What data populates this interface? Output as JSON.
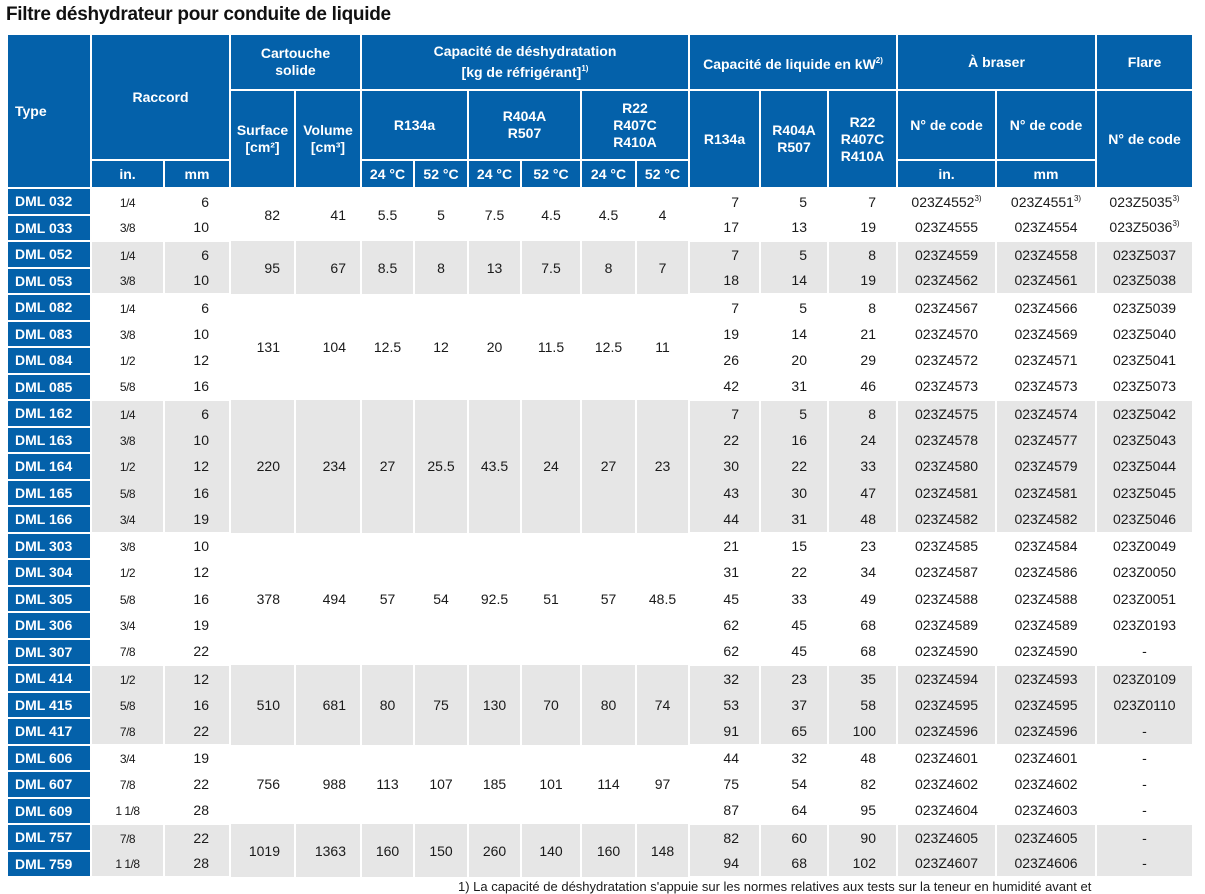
{
  "title": "Filtre déshydrateur pour conduite de liquide",
  "headers": {
    "type": "Type",
    "raccord": "Raccord",
    "raccord_in": "in.",
    "raccord_mm": "mm",
    "cartouche": "Cartouche solide",
    "surface": "Surface",
    "surface_unit": "[cm²]",
    "volume": "Volume",
    "volume_unit": "[cm³]",
    "capacite_desh": "Capacité de déshydratation",
    "capacite_desh_unit": "[kg de réfrigérant]",
    "capacite_desh_fn": "1)",
    "r134a": "R134a",
    "r404a": "R404A R507",
    "r22": "R22 R407C R410A",
    "t24": "24 °C",
    "t52": "52 °C",
    "capacite_liq": "Capacité de liquide en kW",
    "capacite_liq_fn": "2)",
    "braser": "À braser",
    "flare": "Flare",
    "code": "N° de code",
    "code_in": "in.",
    "code_mm": "mm"
  },
  "groups": [
    {
      "surface": "82",
      "volume": "41",
      "desh": [
        "5.5",
        "5",
        "7.5",
        "4.5",
        "4.5",
        "4"
      ],
      "rows": [
        {
          "type": "DML 032",
          "in": "1/4",
          "mm": "6",
          "liq": [
            "7",
            "5",
            "7"
          ],
          "code_in": "023Z4552",
          "code_in_fn": "3)",
          "code_mm": "023Z4551",
          "code_mm_fn": "3)",
          "flare": "023Z5035",
          "flare_fn": "3)"
        },
        {
          "type": "DML 033",
          "in": "3/8",
          "mm": "10",
          "liq": [
            "17",
            "13",
            "19"
          ],
          "code_in": "023Z4555",
          "code_mm": "023Z4554",
          "flare": "023Z5036",
          "flare_fn": "3)"
        }
      ]
    },
    {
      "surface": "95",
      "volume": "67",
      "desh": [
        "8.5",
        "8",
        "13",
        "7.5",
        "8",
        "7"
      ],
      "rows": [
        {
          "type": "DML 052",
          "in": "1/4",
          "mm": "6",
          "liq": [
            "7",
            "5",
            "8"
          ],
          "code_in": "023Z4559",
          "code_mm": "023Z4558",
          "flare": "023Z5037"
        },
        {
          "type": "DML 053",
          "in": "3/8",
          "mm": "10",
          "liq": [
            "18",
            "14",
            "19"
          ],
          "code_in": "023Z4562",
          "code_mm": "023Z4561",
          "flare": "023Z5038"
        }
      ]
    },
    {
      "surface": "131",
      "volume": "104",
      "desh": [
        "12.5",
        "12",
        "20",
        "11.5",
        "12.5",
        "11"
      ],
      "rows": [
        {
          "type": "DML 082",
          "in": "1/4",
          "mm": "6",
          "liq": [
            "7",
            "5",
            "8"
          ],
          "code_in": "023Z4567",
          "code_mm": "023Z4566",
          "flare": "023Z5039"
        },
        {
          "type": "DML 083",
          "in": "3/8",
          "mm": "10",
          "liq": [
            "19",
            "14",
            "21"
          ],
          "code_in": "023Z4570",
          "code_mm": "023Z4569",
          "flare": "023Z5040"
        },
        {
          "type": "DML 084",
          "in": "1/2",
          "mm": "12",
          "liq": [
            "26",
            "20",
            "29"
          ],
          "code_in": "023Z4572",
          "code_mm": "023Z4571",
          "flare": "023Z5041"
        },
        {
          "type": "DML 085",
          "in": "5/8",
          "mm": "16",
          "liq": [
            "42",
            "31",
            "46"
          ],
          "code_in": "023Z4573",
          "code_mm": "023Z4573",
          "flare": "023Z5073"
        }
      ]
    },
    {
      "surface": "220",
      "volume": "234",
      "desh": [
        "27",
        "25.5",
        "43.5",
        "24",
        "27",
        "23"
      ],
      "rows": [
        {
          "type": "DML 162",
          "in": "1/4",
          "mm": "6",
          "liq": [
            "7",
            "5",
            "8"
          ],
          "code_in": "023Z4575",
          "code_mm": "023Z4574",
          "flare": "023Z5042"
        },
        {
          "type": "DML 163",
          "in": "3/8",
          "mm": "10",
          "liq": [
            "22",
            "16",
            "24"
          ],
          "code_in": "023Z4578",
          "code_mm": "023Z4577",
          "flare": "023Z5043"
        },
        {
          "type": "DML 164",
          "in": "1/2",
          "mm": "12",
          "liq": [
            "30",
            "22",
            "33"
          ],
          "code_in": "023Z4580",
          "code_mm": "023Z4579",
          "flare": "023Z5044"
        },
        {
          "type": "DML 165",
          "in": "5/8",
          "mm": "16",
          "liq": [
            "43",
            "30",
            "47"
          ],
          "code_in": "023Z4581",
          "code_mm": "023Z4581",
          "flare": "023Z5045"
        },
        {
          "type": "DML 166",
          "in": "3/4",
          "mm": "19",
          "liq": [
            "44",
            "31",
            "48"
          ],
          "code_in": "023Z4582",
          "code_mm": "023Z4582",
          "flare": "023Z5046"
        }
      ]
    },
    {
      "surface": "378",
      "volume": "494",
      "desh": [
        "57",
        "54",
        "92.5",
        "51",
        "57",
        "48.5"
      ],
      "rows": [
        {
          "type": "DML 303",
          "in": "3/8",
          "mm": "10",
          "liq": [
            "21",
            "15",
            "23"
          ],
          "code_in": "023Z4585",
          "code_mm": "023Z4584",
          "flare": "023Z0049"
        },
        {
          "type": "DML 304",
          "in": "1/2",
          "mm": "12",
          "liq": [
            "31",
            "22",
            "34"
          ],
          "code_in": "023Z4587",
          "code_mm": "023Z4586",
          "flare": "023Z0050"
        },
        {
          "type": "DML 305",
          "in": "5/8",
          "mm": "16",
          "liq": [
            "45",
            "33",
            "49"
          ],
          "code_in": "023Z4588",
          "code_mm": "023Z4588",
          "flare": "023Z0051"
        },
        {
          "type": "DML 306",
          "in": "3/4",
          "mm": "19",
          "liq": [
            "62",
            "45",
            "68"
          ],
          "code_in": "023Z4589",
          "code_mm": "023Z4589",
          "flare": "023Z0193"
        },
        {
          "type": "DML 307",
          "in": "7/8",
          "mm": "22",
          "liq": [
            "62",
            "45",
            "68"
          ],
          "code_in": "023Z4590",
          "code_mm": "023Z4590",
          "flare": "-"
        }
      ]
    },
    {
      "surface": "510",
      "volume": "681",
      "desh": [
        "80",
        "75",
        "130",
        "70",
        "80",
        "74"
      ],
      "rows": [
        {
          "type": "DML 414",
          "in": "1/2",
          "mm": "12",
          "liq": [
            "32",
            "23",
            "35"
          ],
          "code_in": "023Z4594",
          "code_mm": "023Z4593",
          "flare": "023Z0109"
        },
        {
          "type": "DML 415",
          "in": "5/8",
          "mm": "16",
          "liq": [
            "53",
            "37",
            "58"
          ],
          "code_in": "023Z4595",
          "code_mm": "023Z4595",
          "flare": "023Z0110"
        },
        {
          "type": "DML 417",
          "in": "7/8",
          "mm": "22",
          "liq": [
            "91",
            "65",
            "100"
          ],
          "code_in": "023Z4596",
          "code_mm": "023Z4596",
          "flare": "-"
        }
      ]
    },
    {
      "surface": "756",
      "volume": "988",
      "desh": [
        "113",
        "107",
        "185",
        "101",
        "114",
        "97"
      ],
      "rows": [
        {
          "type": "DML 606",
          "in": "3/4",
          "mm": "19",
          "liq": [
            "44",
            "32",
            "48"
          ],
          "code_in": "023Z4601",
          "code_mm": "023Z4601",
          "flare": "-"
        },
        {
          "type": "DML 607",
          "in": "7/8",
          "mm": "22",
          "liq": [
            "75",
            "54",
            "82"
          ],
          "code_in": "023Z4602",
          "code_mm": "023Z4602",
          "flare": "-"
        },
        {
          "type": "DML 609",
          "in": "1 1/8",
          "mm": "28",
          "liq": [
            "87",
            "64",
            "95"
          ],
          "code_in": "023Z4604",
          "code_mm": "023Z4603",
          "flare": "-"
        }
      ]
    },
    {
      "surface": "1019",
      "volume": "1363",
      "desh": [
        "160",
        "150",
        "260",
        "140",
        "160",
        "148"
      ],
      "rows": [
        {
          "type": "DML 757",
          "in": "7/8",
          "mm": "22",
          "liq": [
            "82",
            "60",
            "90"
          ],
          "code_in": "023Z4605",
          "code_mm": "023Z4605",
          "flare": "-"
        },
        {
          "type": "DML 759",
          "in": "1 1/8",
          "mm": "28",
          "liq": [
            "94",
            "68",
            "102"
          ],
          "code_in": "023Z4607",
          "code_mm": "023Z4606",
          "flare": "-"
        }
      ]
    }
  ],
  "footnote": "1) La capacité de déshydratation s'appuie sur les normes relatives aux tests sur la teneur en humidité avant et"
}
